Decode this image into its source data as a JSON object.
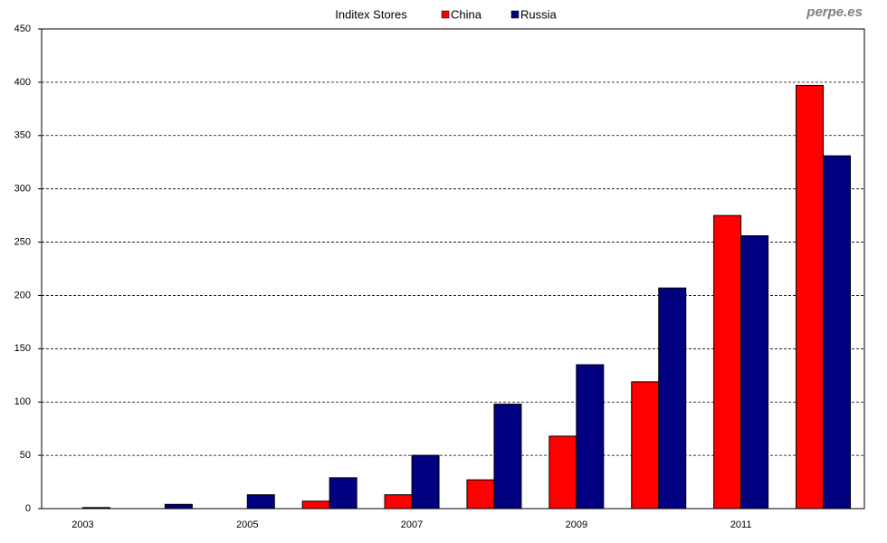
{
  "chart_data": {
    "type": "bar",
    "title": "Inditex Stores",
    "watermark": "perpe.es",
    "categories": [
      "2003",
      null,
      "2005",
      null,
      "2007",
      null,
      "2009",
      null,
      "2011",
      null
    ],
    "series": [
      {
        "name": "China",
        "color": "#ff0000",
        "values": [
          0,
          0,
          0,
          7,
          13,
          27,
          68,
          119,
          275,
          397
        ]
      },
      {
        "name": "Russia",
        "color": "#000080",
        "values": [
          1,
          4,
          13,
          29,
          50,
          98,
          135,
          207,
          256,
          331
        ]
      }
    ],
    "ylim": [
      0,
      450
    ],
    "yticks": [
      0,
      50,
      100,
      150,
      200,
      250,
      300,
      350,
      400,
      450
    ],
    "grid": true,
    "legend": "top"
  }
}
